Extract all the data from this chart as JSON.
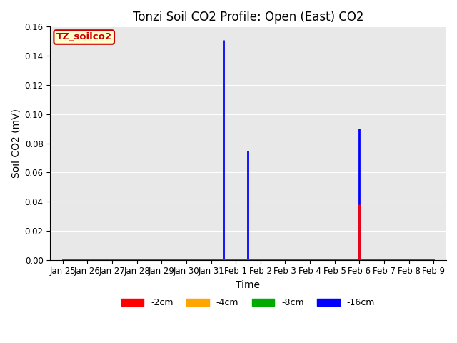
{
  "title": "Tonzi Soil CO2 Profile: Open (East) CO2",
  "ylabel": "Soil CO2 (mV)",
  "xlabel": "Time",
  "legend_label": "TZ_soilco2",
  "ylim": [
    0.0,
    0.16
  ],
  "xlim": [
    -0.5,
    15.5
  ],
  "background_color": "#e8e8e8",
  "series": {
    "-2cm": {
      "color": "#ff0000",
      "vlines": [
        {
          "x": 12.0,
          "ymin": 0.0,
          "ymax": 0.038
        }
      ]
    },
    "-4cm": {
      "color": "#ffa500",
      "vlines": []
    },
    "-8cm": {
      "color": "#00aa00",
      "vlines": [
        {
          "x": 12.0,
          "ymin": 0.0,
          "ymax": 0.001
        }
      ]
    },
    "-16cm": {
      "color": "#0000ff",
      "vlines": [
        {
          "x": 6.5,
          "ymin": 0.0,
          "ymax": 0.151
        },
        {
          "x": 7.5,
          "ymin": 0.0,
          "ymax": 0.075
        },
        {
          "x": 12.0,
          "ymin": 0.0,
          "ymax": 0.09
        }
      ]
    }
  },
  "baseline_x": [
    0,
    15
  ],
  "baseline_y": [
    0,
    0
  ],
  "xtick_labels": [
    "Jan 25",
    "Jan 26",
    "Jan 27",
    "Jan 28",
    "Jan 29",
    "Jan 30",
    "Jan 31",
    "Feb 1",
    "Feb 2",
    "Feb 3",
    "Feb 4",
    "Feb 5",
    "Feb 6",
    "Feb 7",
    "Feb 8",
    "Feb 9"
  ],
  "xtick_offsets": [
    0,
    1,
    2,
    3,
    4,
    5,
    6,
    7,
    8,
    9,
    10,
    11,
    12,
    13,
    14,
    15
  ],
  "ytick_values": [
    0.0,
    0.02,
    0.04,
    0.06,
    0.08,
    0.1,
    0.12,
    0.14,
    0.16
  ],
  "title_fontsize": 12,
  "axis_label_fontsize": 10,
  "tick_fontsize": 8.5,
  "legend_fontsize": 9,
  "linewidth": 2.0,
  "grid_color": "#ffffff",
  "fig_bgcolor": "#ffffff",
  "legend_box_facecolor": "#ffffcc",
  "legend_box_edgecolor": "#cc0000",
  "legend_box_textcolor": "#cc0000"
}
